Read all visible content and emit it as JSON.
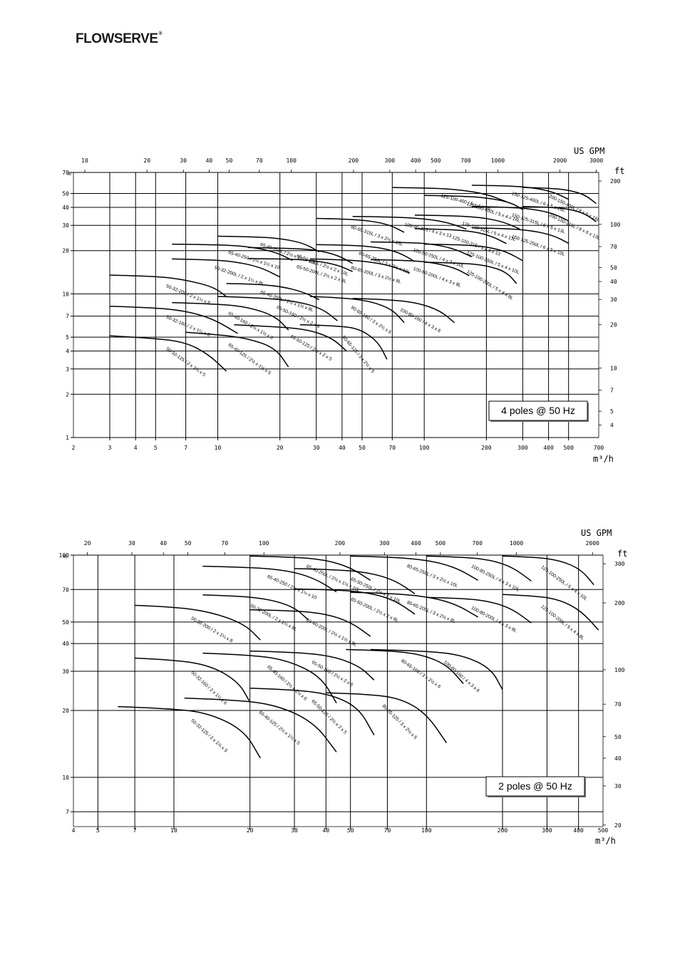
{
  "header": {
    "logo_text": "FLOWSERVE"
  },
  "chart_data": [
    {
      "type": "line",
      "title": "4 poles @ 50 Hz",
      "x_unit": "m³/h",
      "x2_unit": "US GPM",
      "y_unit": "m",
      "y2_unit": "ft",
      "x_scale": "log",
      "y_scale": "log",
      "xlim": [
        2,
        700
      ],
      "ylim": [
        1,
        70
      ],
      "x_ticks": [
        "2",
        "3",
        "4",
        "5",
        "7",
        "10",
        "20",
        "30",
        "40",
        "50",
        "70",
        "100",
        "200",
        "300",
        "400",
        "500",
        "700"
      ],
      "y_ticks": [
        "1",
        "2",
        "3",
        "4",
        "5",
        "7",
        "10",
        "20",
        "30",
        "40",
        "50",
        "70"
      ],
      "gpm_ticks": [
        "10",
        "20",
        "30",
        "40",
        "50",
        "70",
        "100",
        "200",
        "300",
        "400",
        "500",
        "700",
        "1000",
        "2000",
        "3000"
      ],
      "ft_ticks": [
        "4",
        "5",
        "7",
        "10",
        "20",
        "30",
        "40",
        "50",
        "70",
        "100",
        "200"
      ],
      "legend": "bottom-right",
      "series": [
        {
          "name": "50-32-125 / 2 x 1¼ x 5",
          "x": [
            3,
            5,
            7,
            9,
            11
          ],
          "y": [
            5.1,
            4.9,
            4.6,
            3.8,
            2.9
          ]
        },
        {
          "name": "50-32-160 / 2 x 1¼ x 6",
          "x": [
            3,
            5,
            7,
            9.5,
            12.5
          ],
          "y": [
            8.2,
            8.0,
            7.6,
            6.7,
            5.3
          ]
        },
        {
          "name": "50-32-200 / 2 x 1¼ x 8",
          "x": [
            3,
            5,
            7,
            9.5,
            11
          ],
          "y": [
            13.5,
            13.3,
            12.5,
            11.2,
            9.6
          ]
        },
        {
          "name": "50-32-200L / 2 x 1¼ x 8L",
          "x": [
            6,
            9,
            12,
            16,
            20
          ],
          "y": [
            17.5,
            17.3,
            16.8,
            15.4,
            13.1
          ]
        },
        {
          "name": "65-40-250 / 2½ x 1½ x 10",
          "x": [
            6,
            10,
            14,
            19,
            23
          ],
          "y": [
            22.2,
            22.0,
            21.4,
            19.6,
            17.1
          ]
        },
        {
          "name": "65-40-250L / 2½ x 1½ x 10L",
          "x": [
            10,
            15,
            20,
            26,
            31
          ],
          "y": [
            25.2,
            25.0,
            24.3,
            22.6,
            19.6
          ]
        },
        {
          "name": "65-40-200L / 2½ x 1½ x 8L",
          "x": [
            11,
            15,
            20,
            26,
            31
          ],
          "y": [
            11.8,
            11.7,
            11.3,
            10.3,
            9.1
          ]
        },
        {
          "name": "65-40-160 / 2½ x 1½ x 6",
          "x": [
            6,
            10,
            14,
            19,
            22
          ],
          "y": [
            8.7,
            8.5,
            8.1,
            7.0,
            5.6
          ]
        },
        {
          "name": "65-40-125 / 2½ x 1½ x 5",
          "x": [
            7,
            10,
            14,
            19,
            22
          ],
          "y": [
            5.4,
            5.2,
            4.9,
            4.2,
            3.1
          ]
        },
        {
          "name": "65-50-250L / 2½ x 2 x 10L",
          "x": [
            14,
            22,
            30,
            38,
            45
          ],
          "y": [
            21.0,
            20.8,
            20.2,
            18.6,
            16.3
          ]
        },
        {
          "name": "65-50-200L / 2½ x 2 x 8L",
          "x": [
            14,
            22,
            30,
            38,
            45
          ],
          "y": [
            17.6,
            17.5,
            17.0,
            15.9,
            14.3
          ]
        },
        {
          "name": "65-50-160 / 2½ x 2 x 6",
          "x": [
            10,
            16,
            24,
            32,
            38
          ],
          "y": [
            9.6,
            9.4,
            8.9,
            7.9,
            6.5
          ]
        },
        {
          "name": "65-50-125 / 2½ x 2 x 5",
          "x": [
            12,
            20,
            28,
            36,
            42
          ],
          "y": [
            6.1,
            5.9,
            5.6,
            4.9,
            4.0
          ]
        },
        {
          "name": "80-65-315L / 3 x 2½ x 13L",
          "x": [
            30,
            42,
            55,
            68,
            80
          ],
          "y": [
            33.5,
            33.2,
            32.2,
            30.2,
            26.8
          ]
        },
        {
          "name": "80-65-250L / 3 x 2½ x 10L",
          "x": [
            30,
            45,
            60,
            75,
            90
          ],
          "y": [
            22.0,
            21.8,
            21.1,
            19.5,
            16.8
          ]
        },
        {
          "name": "80-65-200L / 3 x 2½ x 8L",
          "x": [
            28,
            40,
            55,
            70,
            85
          ],
          "y": [
            17.5,
            17.3,
            16.7,
            15.6,
            14.0
          ]
        },
        {
          "name": "80-65-160 / 3 x 2½ x 6",
          "x": [
            28,
            40,
            55,
            70,
            80
          ],
          "y": [
            9.6,
            9.4,
            8.9,
            7.8,
            6.3
          ]
        },
        {
          "name": "80-65-125 / 3 x 2½ x 5",
          "x": [
            25,
            40,
            50,
            60,
            66
          ],
          "y": [
            6.1,
            6.0,
            5.6,
            4.6,
            3.5
          ]
        },
        {
          "name": "100-80-315 / 4 x 3 x 13",
          "x": [
            45,
            70,
            100,
            130,
            160
          ],
          "y": [
            34.6,
            34.3,
            33.4,
            31.4,
            28.2
          ]
        },
        {
          "name": "100-80-250L / 4 x 3 x 10L",
          "x": [
            55,
            85,
            110,
            140,
            170
          ],
          "y": [
            23.0,
            22.8,
            22.2,
            20.6,
            18.1
          ]
        },
        {
          "name": "100-80-200L / 4 x 3 x 8L",
          "x": [
            55,
            85,
            110,
            140,
            165
          ],
          "y": [
            17.3,
            17.1,
            16.5,
            15.2,
            13.4
          ]
        },
        {
          "name": "100-80-160 / 4 x 3 x 6",
          "x": [
            45,
            70,
            95,
            120,
            140
          ],
          "y": [
            9.3,
            9.1,
            8.6,
            7.6,
            6.3
          ]
        },
        {
          "name": "125-100-400 / 5 x 4 x 16",
          "x": [
            70,
            110,
            150,
            200,
            250
          ],
          "y": [
            55.0,
            54.5,
            53.0,
            49.5,
            43.8
          ]
        },
        {
          "name": "125-100-400L / 5 x 4 x 16L",
          "x": [
            100,
            150,
            200,
            260,
            300
          ],
          "y": [
            48.4,
            48.0,
            46.6,
            43.5,
            38.6
          ]
        },
        {
          "name": "125-100-315L / 5 x 4 x 13L",
          "x": [
            90,
            140,
            190,
            240,
            290
          ],
          "y": [
            35.3,
            35.0,
            34.0,
            31.8,
            28.3
          ]
        },
        {
          "name": "125-100-315 / 5 x 4 x 13",
          "x": [
            90,
            130,
            170,
            210,
            250
          ],
          "y": [
            28.4,
            28.1,
            27.3,
            25.4,
            22.4
          ]
        },
        {
          "name": "125-100-250L / 5 x 4 x 10L",
          "x": [
            100,
            150,
            200,
            250,
            300
          ],
          "y": [
            22.2,
            22.0,
            21.3,
            19.7,
            17.0
          ]
        },
        {
          "name": "125-100-200L / 5 x 4 x 8L",
          "x": [
            100,
            150,
            200,
            250,
            280
          ],
          "y": [
            16.6,
            16.4,
            15.8,
            14.2,
            11.8
          ]
        },
        {
          "name": "150-125-400L / 6 x 5 x 16L",
          "x": [
            170,
            250,
            330,
            420,
            500
          ],
          "y": [
            57.0,
            56.6,
            55.0,
            51.4,
            45.5
          ]
        },
        {
          "name": "150-125-315L / 6 x 5 x 13L",
          "x": [
            170,
            250,
            330,
            420,
            500
          ],
          "y": [
            40.6,
            40.2,
            39.0,
            36.4,
            32.2
          ]
        },
        {
          "name": "150-125-250L / 6 x 5 x 10L",
          "x": [
            170,
            250,
            330,
            420,
            500
          ],
          "y": [
            28.8,
            28.5,
            27.6,
            25.6,
            22.5
          ]
        },
        {
          "name": "200-150-400L / 8 x 6 x 16L",
          "x": [
            300,
            400,
            500,
            600,
            680
          ],
          "y": [
            55.0,
            54.5,
            52.8,
            49.0,
            42.5
          ]
        },
        {
          "name": "200-150-315L / 8 x 6 x 13L",
          "x": [
            300,
            400,
            500,
            600,
            680
          ],
          "y": [
            40.6,
            40.2,
            39.0,
            36.2,
            31.8
          ]
        }
      ]
    },
    {
      "type": "line",
      "title": "2 poles @ 50 Hz",
      "x_unit": "m³/h",
      "x2_unit": "US GPM",
      "y_unit": "m",
      "y2_unit": "ft",
      "x_scale": "log",
      "y_scale": "log",
      "xlim": [
        4,
        500
      ],
      "ylim": [
        6,
        100
      ],
      "x_ticks": [
        "4",
        "5",
        "7",
        "10",
        "20",
        "30",
        "40",
        "50",
        "70",
        "100",
        "200",
        "300",
        "400",
        "500"
      ],
      "y_ticks": [
        "7",
        "10",
        "20",
        "30",
        "40",
        "50",
        "70",
        "100"
      ],
      "gpm_ticks": [
        "20",
        "30",
        "40",
        "50",
        "70",
        "100",
        "200",
        "300",
        "400",
        "500",
        "700",
        "1000",
        "2000"
      ],
      "ft_ticks": [
        "20",
        "30",
        "40",
        "50",
        "70",
        "100",
        "200",
        "300"
      ],
      "legend": "bottom-right",
      "series": [
        {
          "name": "50-32-125 / 2 x 1¼ x 5",
          "x": [
            6,
            10,
            14,
            19,
            22
          ],
          "y": [
            20.8,
            20.4,
            19.3,
            16.2,
            12.2
          ]
        },
        {
          "name": "50-32-160 / 2 x 1¼ x 6",
          "x": [
            7,
            10,
            14,
            18,
            20
          ],
          "y": [
            34.4,
            33.8,
            31.8,
            26.9,
            21.8
          ]
        },
        {
          "name": "50-32-200 / 2 x 1¼ x 8",
          "x": [
            7,
            10,
            14,
            19,
            22
          ],
          "y": [
            59.4,
            58.5,
            55.5,
            49.0,
            41.5
          ]
        },
        {
          "name": "50-32-200L / 2 x 1¼ x 8L",
          "x": [
            13,
            18,
            24,
            30,
            34
          ],
          "y": [
            66.2,
            65.5,
            63.2,
            58.2,
            51.2
          ]
        },
        {
          "name": "65-40-250 / 2½ x 1½ x 10",
          "x": [
            13,
            20,
            28,
            36,
            44
          ],
          "y": [
            89.1,
            88.2,
            85.4,
            78.8,
            68.3
          ]
        },
        {
          "name": "65-40-250L / 2½ x 1½ x 10L",
          "x": [
            20,
            30,
            40,
            50,
            60
          ],
          "y": [
            99.0,
            98.0,
            95.0,
            88.0,
            77.0
          ]
        },
        {
          "name": "65-40-200L / 2½ x 1½ x 8L",
          "x": [
            20,
            30,
            40,
            50,
            60
          ],
          "y": [
            56.8,
            56.2,
            54.4,
            50.0,
            43.1
          ]
        },
        {
          "name": "65-40-160 / 2½ x 1½ x 6",
          "x": [
            13,
            20,
            28,
            38,
            44
          ],
          "y": [
            36.2,
            35.6,
            33.7,
            28.6,
            21.6
          ]
        },
        {
          "name": "65-40-125 / 2½ x 1½ x 5",
          "x": [
            11,
            18,
            26,
            36,
            44
          ],
          "y": [
            22.7,
            22.3,
            21.0,
            17.6,
            13.0
          ]
        },
        {
          "name": "65-50-250L / 2½ x 2 x 10L",
          "x": [
            30,
            45,
            60,
            75,
            90
          ],
          "y": [
            87.0,
            86.0,
            83.2,
            77.0,
            67.0
          ]
        },
        {
          "name": "65-50-200L / 2½ x 2 x 8L",
          "x": [
            30,
            45,
            60,
            75,
            90
          ],
          "y": [
            70.4,
            69.8,
            67.5,
            62.5,
            54.2
          ]
        },
        {
          "name": "65-50-160 / 2½ x 2 x 6",
          "x": [
            20,
            30,
            42,
            54,
            62
          ],
          "y": [
            37.0,
            36.6,
            35.2,
            31.8,
            27.4
          ]
        },
        {
          "name": "65-50-125 / 2½ x 2 x 5",
          "x": [
            20,
            30,
            42,
            54,
            62
          ],
          "y": [
            25.2,
            24.8,
            23.6,
            20.5,
            15.5
          ]
        },
        {
          "name": "80-65-250L / 3 x 2½ x 10L",
          "x": [
            50,
            70,
            100,
            130,
            160
          ],
          "y": [
            99.0,
            98.2,
            95.2,
            88.3,
            77.0
          ]
        },
        {
          "name": "80-65-200L / 3 x 2½ x 8L",
          "x": [
            50,
            70,
            100,
            130,
            160
          ],
          "y": [
            68.0,
            67.4,
            65.2,
            60.4,
            52.6
          ]
        },
        {
          "name": "80-65-160 / 3 x 2½ x 6",
          "x": [
            48,
            70,
            95,
            120,
            140
          ],
          "y": [
            37.6,
            37.2,
            35.8,
            32.2,
            26.4
          ]
        },
        {
          "name": "80-65-125 / 3 x 2½ x 5",
          "x": [
            40,
            60,
            80,
            100,
            120
          ],
          "y": [
            24.0,
            23.7,
            22.5,
            19.3,
            14.3
          ]
        },
        {
          "name": "100-80-250L / 4 x 3 x 10L",
          "x": [
            100,
            140,
            180,
            220,
            260
          ],
          "y": [
            99.0,
            98.0,
            95.0,
            88.0,
            76.5
          ]
        },
        {
          "name": "100-80-200L / 4 x 3 x 8L",
          "x": [
            100,
            140,
            180,
            220,
            260
          ],
          "y": [
            64.5,
            63.9,
            61.8,
            57.0,
            49.5
          ]
        },
        {
          "name": "100-80-160 / 4 x 3 x 6",
          "x": [
            60,
            100,
            140,
            180,
            200
          ],
          "y": [
            37.6,
            37.1,
            35.4,
            30.9,
            24.8
          ]
        },
        {
          "name": "125-100-250L / 5 x 4 x 10L",
          "x": [
            200,
            270,
            340,
            410,
            460
          ],
          "y": [
            99.0,
            98.0,
            94.5,
            86.0,
            73.5
          ]
        },
        {
          "name": "125-100-200L / 5 x 4 x 8L",
          "x": [
            200,
            270,
            340,
            410,
            480
          ],
          "y": [
            66.5,
            65.6,
            62.8,
            56.0,
            46.0
          ]
        }
      ]
    }
  ]
}
